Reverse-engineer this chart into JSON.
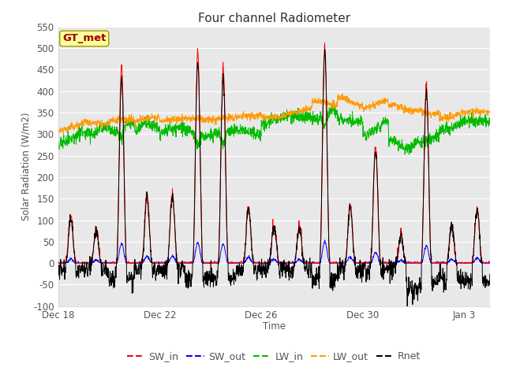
{
  "title": "Four channel Radiometer",
  "xlabel": "Time",
  "ylabel": "Solar Radiation (W/m2)",
  "ylim": [
    -100,
    550
  ],
  "yticks": [
    -100,
    -50,
    0,
    50,
    100,
    150,
    200,
    250,
    300,
    350,
    400,
    450,
    500,
    550
  ],
  "xtick_labels": [
    "Dec 18",
    "Dec 22",
    "Dec 26",
    "Dec 30",
    "Jan 3"
  ],
  "xtick_positions": [
    0,
    4,
    8,
    12,
    16
  ],
  "annotation_text": "GT_met",
  "colors": {
    "SW_in": "#ff0000",
    "SW_out": "#0000ff",
    "LW_in": "#00bb00",
    "LW_out": "#ff9900",
    "Rnet": "#000000"
  },
  "background_color": "#e8e8e8",
  "title_fontsize": 11,
  "axis_fontsize": 8.5,
  "legend_fontsize": 9,
  "n_points": 1700
}
